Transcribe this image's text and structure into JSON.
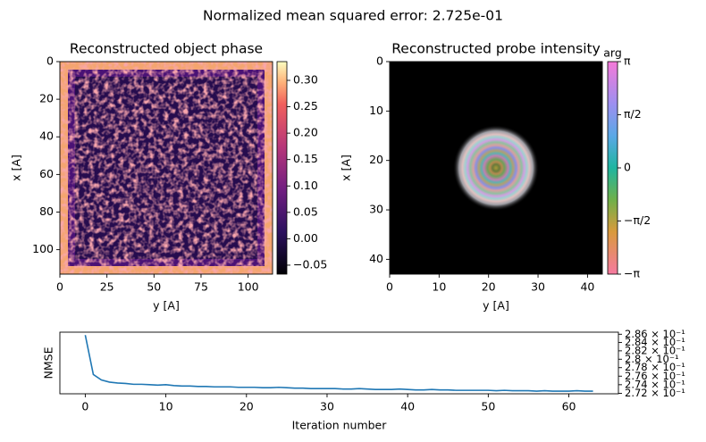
{
  "title": "Normalized mean squared error: 2.725e-01",
  "chart_data": [
    {
      "type": "image",
      "title": "Reconstructed object phase",
      "xlabel": "y [A]",
      "ylabel": "x [A]",
      "xlim": [
        0,
        113
      ],
      "ylim": [
        113,
        0
      ],
      "xticks": [
        0,
        25,
        50,
        75,
        100
      ],
      "yticks": [
        0,
        20,
        40,
        60,
        80,
        100
      ],
      "colormap": "magma",
      "clim": [
        -0.067,
        0.3355
      ],
      "cticks": [
        {
          "value": -0.05,
          "label": "−0.05"
        },
        {
          "value": 0,
          "label": "0.00"
        },
        {
          "value": 0.05,
          "label": "0.05"
        },
        {
          "value": 0.1,
          "label": "0.10"
        },
        {
          "value": 0.15,
          "label": "0.15"
        },
        {
          "value": 0.2,
          "label": "0.20"
        },
        {
          "value": 0.25,
          "label": "0.25"
        },
        {
          "value": 0.3,
          "label": "0.30"
        }
      ]
    },
    {
      "type": "image",
      "title": "Reconstructed probe intensity",
      "xlabel": "y [A]",
      "ylabel": "x [A]",
      "xlim": [
        0,
        43
      ],
      "ylim": [
        43,
        0
      ],
      "xticks": [
        0,
        10,
        20,
        30,
        40
      ],
      "yticks": [
        0,
        10,
        20,
        30,
        40
      ],
      "colormap": "cyclic",
      "colorbar_label": "arg",
      "clim": [
        -3.14159,
        3.14159
      ],
      "cticks": [
        {
          "value": -3.14159,
          "label": "−π"
        },
        {
          "value": -1.5708,
          "label": "−π/2"
        },
        {
          "value": 0,
          "label": "0"
        },
        {
          "value": 1.5708,
          "label": "π/2"
        },
        {
          "value": 3.14159,
          "label": "π"
        }
      ]
    },
    {
      "type": "line",
      "xlabel": "Iteration number",
      "ylabel": "NMSE",
      "color": "#1f77b4",
      "log_y": true,
      "ytick_side": "right",
      "xlim": [
        -3.15,
        66.15
      ],
      "ylim": [
        0.2719,
        0.2865
      ],
      "xticks": [
        0,
        10,
        20,
        30,
        40,
        50,
        60
      ],
      "yticks": [
        {
          "value": 0.272,
          "label": "2.72 × 10⁻¹"
        },
        {
          "value": 0.274,
          "label": "2.74 × 10⁻¹"
        },
        {
          "value": 0.276,
          "label": "2.76 × 10⁻¹"
        },
        {
          "value": 0.278,
          "label": "2.78 × 10⁻¹"
        },
        {
          "value": 0.28,
          "label": "2.8 × 10⁻¹"
        },
        {
          "value": 0.282,
          "label": "2.82 × 10⁻¹"
        },
        {
          "value": 0.284,
          "label": "2.84 × 10⁻¹"
        },
        {
          "value": 0.286,
          "label": "2.86 × 10⁻¹"
        }
      ],
      "x": [
        0,
        1,
        2,
        3,
        4,
        5,
        6,
        7,
        8,
        9,
        10,
        11,
        12,
        13,
        14,
        15,
        16,
        17,
        18,
        19,
        20,
        21,
        22,
        23,
        24,
        25,
        26,
        27,
        28,
        29,
        30,
        31,
        32,
        33,
        34,
        35,
        36,
        37,
        38,
        39,
        40,
        41,
        42,
        43,
        44,
        45,
        46,
        47,
        48,
        49,
        50,
        51,
        52,
        53,
        54,
        55,
        56,
        57,
        58,
        59,
        60,
        61,
        62,
        63
      ],
      "values": [
        0.2858,
        0.2764,
        0.2751,
        0.2746,
        0.2744,
        0.2743,
        0.2741,
        0.2741,
        0.274,
        0.2739,
        0.274,
        0.2738,
        0.2737,
        0.2737,
        0.2736,
        0.2736,
        0.2735,
        0.2735,
        0.2735,
        0.2734,
        0.2734,
        0.2734,
        0.2733,
        0.2733,
        0.2734,
        0.2733,
        0.2732,
        0.2732,
        0.2731,
        0.2731,
        0.2731,
        0.2731,
        0.273,
        0.273,
        0.2731,
        0.273,
        0.2729,
        0.2729,
        0.2729,
        0.273,
        0.2729,
        0.2728,
        0.2728,
        0.2729,
        0.2728,
        0.2728,
        0.2727,
        0.2727,
        0.2727,
        0.2727,
        0.2727,
        0.2726,
        0.2727,
        0.2726,
        0.2726,
        0.2726,
        0.2725,
        0.2726,
        0.2725,
        0.2725,
        0.2725,
        0.2726,
        0.2725,
        0.2725
      ]
    }
  ]
}
